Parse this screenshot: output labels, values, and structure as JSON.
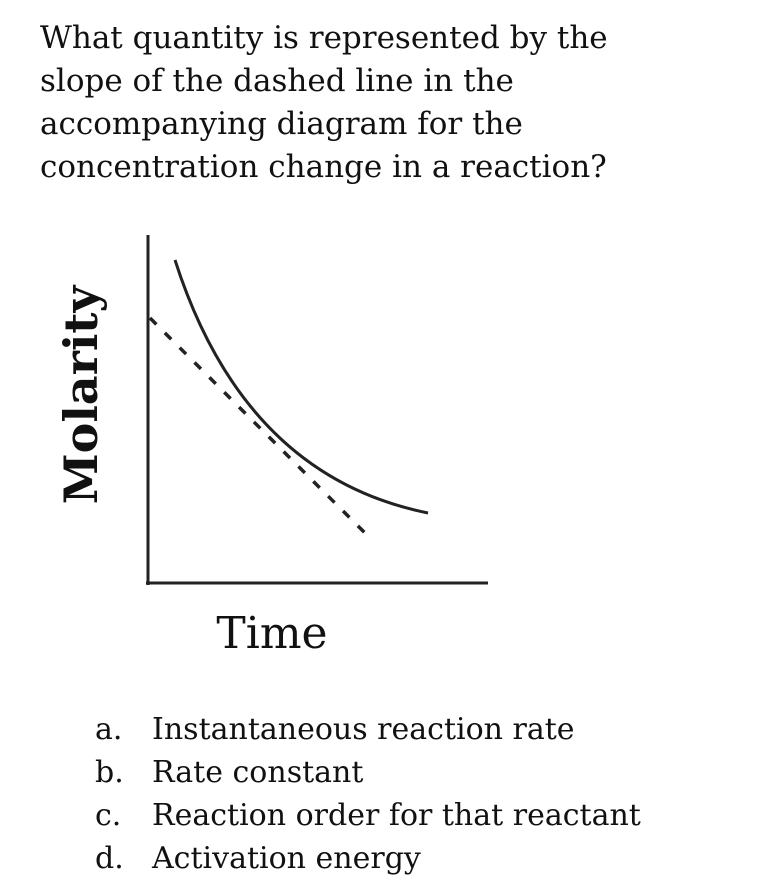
{
  "question": {
    "lines": [
      "What quantity is represented by the",
      "slope of the dashed line in the",
      "accompanying diagram for the",
      "concentration change in a reaction?"
    ]
  },
  "diagram": {
    "y_label": "Molarity",
    "x_label": "Time"
  },
  "options": [
    {
      "letter": "a.",
      "text": "Instantaneous reaction rate"
    },
    {
      "letter": "b.",
      "text": "Rate constant"
    },
    {
      "letter": "c.",
      "text": "Reaction order for that reactant"
    },
    {
      "letter": "d.",
      "text": "Activation energy"
    }
  ]
}
